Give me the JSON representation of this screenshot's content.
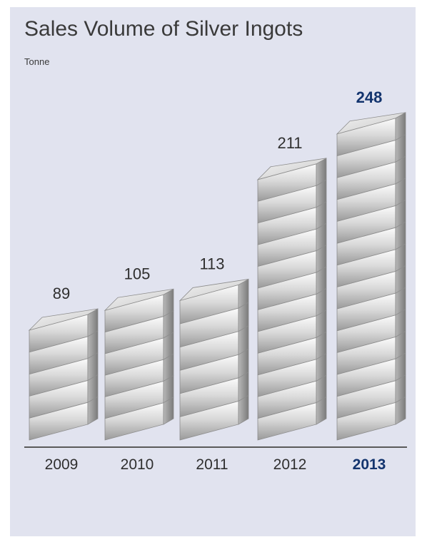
{
  "title": "Sales Volume of Silver Ingots",
  "unit": "Tonne",
  "chart_data": {
    "type": "bar",
    "title": "Sales Volume of Silver Ingots",
    "ylabel": "Tonne",
    "categories": [
      "2009",
      "2010",
      "2011",
      "2012",
      "2013"
    ],
    "values": [
      89,
      105,
      113,
      211,
      248
    ],
    "highlight": "2013",
    "colors": {
      "background": "#e1e3ef",
      "axis": "#5a5a5a",
      "text": "#2f2f2f",
      "highlight": "#13346e"
    }
  }
}
